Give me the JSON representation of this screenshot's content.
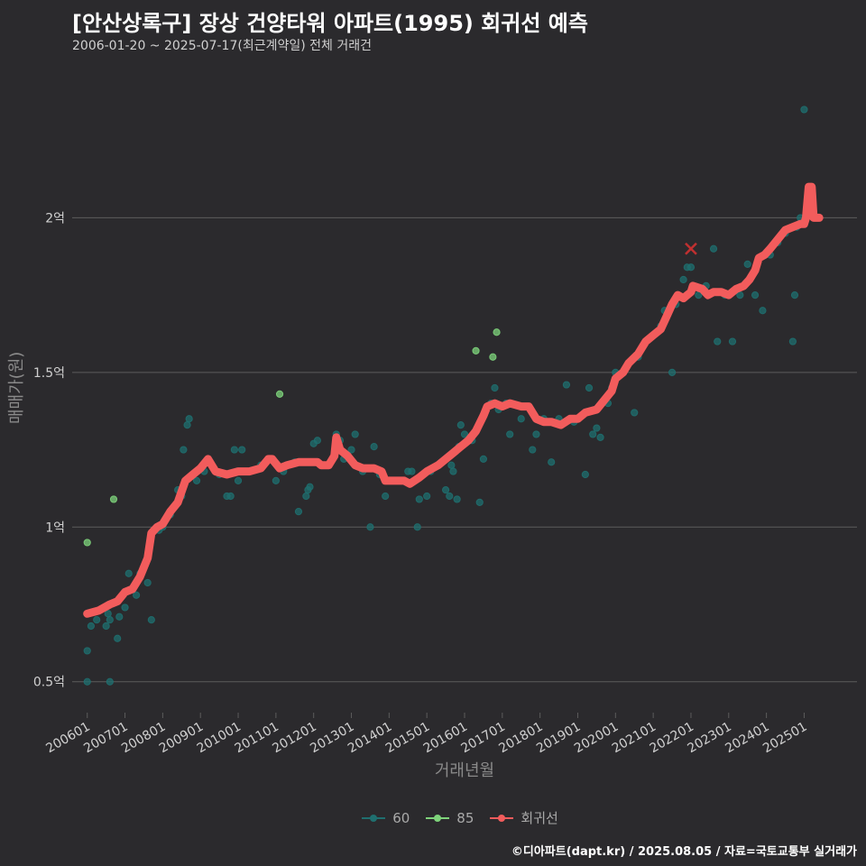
{
  "chart_data": {
    "type": "scatter",
    "title": "[안산상록구] 장상 건양타워 아파트(1995) 회귀선 예측",
    "subtitle": "2006-01-20 ~ 2025-07-17(최근계약일) 전체 거래건",
    "xlabel": "거래년월",
    "ylabel": "매매가(원)",
    "caption": "©디아파트(dapt.kr) / 2025.08.05 / 자료=국토교통부 실거래가",
    "ylim": [
      0.4,
      2.5
    ],
    "xlim": [
      2005.6,
      2026.4
    ],
    "y_ticks": [
      {
        "value": 0.5,
        "label": "0.5억"
      },
      {
        "value": 1.0,
        "label": "1억"
      },
      {
        "value": 1.5,
        "label": "1.5억"
      },
      {
        "value": 2.0,
        "label": "2억"
      }
    ],
    "x_ticks": [
      {
        "value": 2006,
        "label": "200601"
      },
      {
        "value": 2007,
        "label": "200701"
      },
      {
        "value": 2008,
        "label": "200801"
      },
      {
        "value": 2009,
        "label": "200901"
      },
      {
        "value": 2010,
        "label": "201001"
      },
      {
        "value": 2011,
        "label": "201101"
      },
      {
        "value": 2012,
        "label": "201201"
      },
      {
        "value": 2013,
        "label": "201301"
      },
      {
        "value": 2014,
        "label": "201401"
      },
      {
        "value": 2015,
        "label": "201501"
      },
      {
        "value": 2016,
        "label": "201601"
      },
      {
        "value": 2017,
        "label": "201701"
      },
      {
        "value": 2018,
        "label": "201801"
      },
      {
        "value": 2019,
        "label": "201901"
      },
      {
        "value": 2020,
        "label": "202001"
      },
      {
        "value": 2021,
        "label": "202101"
      },
      {
        "value": 2022,
        "label": "202201"
      },
      {
        "value": 2023,
        "label": "202301"
      },
      {
        "value": 2024,
        "label": "202401"
      },
      {
        "value": 2025,
        "label": "202501"
      }
    ],
    "colors": {
      "background": "#2b2a2d",
      "grid": "#5c5c5c",
      "series_60": "#1f6f6f",
      "series_85": "#7ed37b",
      "regression": "#f25c5c",
      "marker_x": "#c03030"
    },
    "series": [
      {
        "name": "60",
        "points": [
          [
            2006.0,
            0.6
          ],
          [
            2006.0,
            0.5
          ],
          [
            2006.1,
            0.68
          ],
          [
            2006.25,
            0.7
          ],
          [
            2006.5,
            0.68
          ],
          [
            2006.55,
            0.72
          ],
          [
            2006.6,
            0.5
          ],
          [
            2006.6,
            0.7
          ],
          [
            2006.8,
            0.64
          ],
          [
            2006.85,
            0.71
          ],
          [
            2007.0,
            0.74
          ],
          [
            2007.1,
            0.85
          ],
          [
            2007.3,
            0.78
          ],
          [
            2007.4,
            0.85
          ],
          [
            2007.6,
            0.82
          ],
          [
            2007.7,
            0.7
          ],
          [
            2007.9,
            0.99
          ],
          [
            2008.0,
            1.0
          ],
          [
            2008.2,
            1.04
          ],
          [
            2008.4,
            1.12
          ],
          [
            2008.5,
            1.1
          ],
          [
            2008.55,
            1.25
          ],
          [
            2008.65,
            1.33
          ],
          [
            2008.7,
            1.35
          ],
          [
            2008.9,
            1.15
          ],
          [
            2009.1,
            1.18
          ],
          [
            2009.3,
            1.2
          ],
          [
            2009.5,
            1.17
          ],
          [
            2009.7,
            1.1
          ],
          [
            2009.8,
            1.1
          ],
          [
            2009.9,
            1.25
          ],
          [
            2010.0,
            1.15
          ],
          [
            2010.05,
            1.18
          ],
          [
            2010.1,
            1.25
          ],
          [
            2010.3,
            1.18
          ],
          [
            2010.6,
            1.2
          ],
          [
            2010.8,
            1.22
          ],
          [
            2011.0,
            1.15
          ],
          [
            2011.2,
            1.18
          ],
          [
            2011.3,
            1.2
          ],
          [
            2011.5,
            1.21
          ],
          [
            2011.6,
            1.05
          ],
          [
            2011.8,
            1.1
          ],
          [
            2011.85,
            1.12
          ],
          [
            2011.9,
            1.13
          ],
          [
            2012.0,
            1.27
          ],
          [
            2012.1,
            1.28
          ],
          [
            2012.2,
            1.2
          ],
          [
            2012.4,
            1.2
          ],
          [
            2012.6,
            1.3
          ],
          [
            2012.7,
            1.28
          ],
          [
            2012.8,
            1.22
          ],
          [
            2013.0,
            1.25
          ],
          [
            2013.1,
            1.3
          ],
          [
            2013.3,
            1.18
          ],
          [
            2013.5,
            1.0
          ],
          [
            2013.6,
            1.26
          ],
          [
            2013.75,
            1.17
          ],
          [
            2013.9,
            1.1
          ],
          [
            2014.1,
            1.15
          ],
          [
            2014.3,
            1.15
          ],
          [
            2014.5,
            1.18
          ],
          [
            2014.6,
            1.18
          ],
          [
            2014.75,
            1.0
          ],
          [
            2014.8,
            1.09
          ],
          [
            2015.0,
            1.1
          ],
          [
            2015.1,
            1.18
          ],
          [
            2015.3,
            1.2
          ],
          [
            2015.5,
            1.12
          ],
          [
            2015.6,
            1.1
          ],
          [
            2015.65,
            1.2
          ],
          [
            2015.7,
            1.18
          ],
          [
            2015.8,
            1.09
          ],
          [
            2015.85,
            1.26
          ],
          [
            2015.9,
            1.33
          ],
          [
            2016.0,
            1.3
          ],
          [
            2016.2,
            1.28
          ],
          [
            2016.4,
            1.08
          ],
          [
            2016.5,
            1.22
          ],
          [
            2016.7,
            1.4
          ],
          [
            2016.8,
            1.45
          ],
          [
            2016.9,
            1.38
          ],
          [
            2017.1,
            1.4
          ],
          [
            2017.2,
            1.3
          ],
          [
            2017.5,
            1.35
          ],
          [
            2017.8,
            1.25
          ],
          [
            2017.9,
            1.3
          ],
          [
            2018.1,
            1.35
          ],
          [
            2018.3,
            1.21
          ],
          [
            2018.5,
            1.35
          ],
          [
            2018.7,
            1.46
          ],
          [
            2018.9,
            1.34
          ],
          [
            2019.0,
            1.35
          ],
          [
            2019.1,
            1.36
          ],
          [
            2019.2,
            1.17
          ],
          [
            2019.3,
            1.45
          ],
          [
            2019.4,
            1.3
          ],
          [
            2019.5,
            1.32
          ],
          [
            2019.6,
            1.29
          ],
          [
            2019.8,
            1.4
          ],
          [
            2019.9,
            1.45
          ],
          [
            2020.0,
            1.5
          ],
          [
            2020.3,
            1.52
          ],
          [
            2020.5,
            1.37
          ],
          [
            2020.6,
            1.55
          ],
          [
            2020.8,
            1.6
          ],
          [
            2021.0,
            1.62
          ],
          [
            2021.2,
            1.65
          ],
          [
            2021.3,
            1.7
          ],
          [
            2021.5,
            1.5
          ],
          [
            2021.6,
            1.72
          ],
          [
            2021.8,
            1.8
          ],
          [
            2021.9,
            1.84
          ],
          [
            2022.0,
            1.84
          ],
          [
            2022.2,
            1.75
          ],
          [
            2022.4,
            1.78
          ],
          [
            2022.6,
            1.9
          ],
          [
            2022.7,
            1.6
          ],
          [
            2022.9,
            1.75
          ],
          [
            2023.1,
            1.6
          ],
          [
            2023.3,
            1.75
          ],
          [
            2023.5,
            1.85
          ],
          [
            2023.7,
            1.75
          ],
          [
            2023.9,
            1.7
          ],
          [
            2024.1,
            1.88
          ],
          [
            2024.3,
            1.92
          ],
          [
            2024.5,
            1.95
          ],
          [
            2024.7,
            1.6
          ],
          [
            2024.75,
            1.75
          ],
          [
            2024.8,
            1.97
          ],
          [
            2024.9,
            2.0
          ],
          [
            2025.0,
            2.35
          ],
          [
            2025.2,
            2.05
          ]
        ]
      },
      {
        "name": "85",
        "points": [
          [
            2006.0,
            0.95
          ],
          [
            2006.7,
            1.09
          ],
          [
            2011.1,
            1.43
          ],
          [
            2016.3,
            1.57
          ],
          [
            2016.75,
            1.55
          ],
          [
            2016.85,
            1.63
          ]
        ]
      }
    ],
    "regression": {
      "name": "회귀선",
      "points": [
        [
          2006.0,
          0.72
        ],
        [
          2006.3,
          0.73
        ],
        [
          2006.6,
          0.75
        ],
        [
          2006.8,
          0.76
        ],
        [
          2007.0,
          0.79
        ],
        [
          2007.2,
          0.8
        ],
        [
          2007.4,
          0.84
        ],
        [
          2007.6,
          0.9
        ],
        [
          2007.7,
          0.98
        ],
        [
          2007.85,
          1.0
        ],
        [
          2008.0,
          1.01
        ],
        [
          2008.2,
          1.05
        ],
        [
          2008.4,
          1.08
        ],
        [
          2008.6,
          1.15
        ],
        [
          2008.8,
          1.17
        ],
        [
          2009.0,
          1.19
        ],
        [
          2009.2,
          1.22
        ],
        [
          2009.4,
          1.18
        ],
        [
          2009.7,
          1.17
        ],
        [
          2010.0,
          1.18
        ],
        [
          2010.3,
          1.18
        ],
        [
          2010.6,
          1.19
        ],
        [
          2010.8,
          1.22
        ],
        [
          2010.9,
          1.22
        ],
        [
          2011.1,
          1.19
        ],
        [
          2011.3,
          1.2
        ],
        [
          2011.6,
          1.21
        ],
        [
          2011.9,
          1.21
        ],
        [
          2012.1,
          1.21
        ],
        [
          2012.2,
          1.2
        ],
        [
          2012.4,
          1.2
        ],
        [
          2012.55,
          1.23
        ],
        [
          2012.6,
          1.29
        ],
        [
          2012.7,
          1.25
        ],
        [
          2012.9,
          1.23
        ],
        [
          2013.1,
          1.2
        ],
        [
          2013.3,
          1.19
        ],
        [
          2013.6,
          1.19
        ],
        [
          2013.8,
          1.18
        ],
        [
          2013.9,
          1.15
        ],
        [
          2014.1,
          1.15
        ],
        [
          2014.4,
          1.15
        ],
        [
          2014.55,
          1.14
        ],
        [
          2014.8,
          1.16
        ],
        [
          2015.0,
          1.18
        ],
        [
          2015.3,
          1.2
        ],
        [
          2015.5,
          1.22
        ],
        [
          2015.7,
          1.24
        ],
        [
          2015.9,
          1.26
        ],
        [
          2016.1,
          1.28
        ],
        [
          2016.3,
          1.31
        ],
        [
          2016.5,
          1.36
        ],
        [
          2016.6,
          1.39
        ],
        [
          2016.8,
          1.4
        ],
        [
          2017.0,
          1.39
        ],
        [
          2017.2,
          1.4
        ],
        [
          2017.5,
          1.39
        ],
        [
          2017.7,
          1.39
        ],
        [
          2017.9,
          1.35
        ],
        [
          2018.1,
          1.34
        ],
        [
          2018.3,
          1.34
        ],
        [
          2018.55,
          1.33
        ],
        [
          2018.8,
          1.35
        ],
        [
          2019.0,
          1.35
        ],
        [
          2019.2,
          1.37
        ],
        [
          2019.5,
          1.38
        ],
        [
          2019.7,
          1.41
        ],
        [
          2019.9,
          1.44
        ],
        [
          2020.0,
          1.48
        ],
        [
          2020.2,
          1.5
        ],
        [
          2020.35,
          1.53
        ],
        [
          2020.6,
          1.56
        ],
        [
          2020.8,
          1.6
        ],
        [
          2021.0,
          1.62
        ],
        [
          2021.2,
          1.64
        ],
        [
          2021.35,
          1.68
        ],
        [
          2021.5,
          1.72
        ],
        [
          2021.65,
          1.75
        ],
        [
          2021.8,
          1.74
        ],
        [
          2022.0,
          1.76
        ],
        [
          2022.05,
          1.78
        ],
        [
          2022.3,
          1.77
        ],
        [
          2022.45,
          1.75
        ],
        [
          2022.6,
          1.76
        ],
        [
          2022.8,
          1.76
        ],
        [
          2023.0,
          1.75
        ],
        [
          2023.2,
          1.77
        ],
        [
          2023.4,
          1.78
        ],
        [
          2023.55,
          1.8
        ],
        [
          2023.7,
          1.83
        ],
        [
          2023.8,
          1.87
        ],
        [
          2023.95,
          1.88
        ],
        [
          2024.1,
          1.9
        ],
        [
          2024.3,
          1.93
        ],
        [
          2024.5,
          1.96
        ],
        [
          2024.7,
          1.97
        ],
        [
          2024.9,
          1.98
        ],
        [
          2025.0,
          1.98
        ],
        [
          2025.05,
          2.0
        ],
        [
          2025.12,
          2.1
        ],
        [
          2025.2,
          2.1
        ],
        [
          2025.25,
          2.0
        ],
        [
          2025.4,
          2.0
        ]
      ]
    },
    "cancelled_marker": {
      "x": 2022.0,
      "y": 1.9
    },
    "legend": [
      "60",
      "85",
      "회귀선"
    ]
  }
}
